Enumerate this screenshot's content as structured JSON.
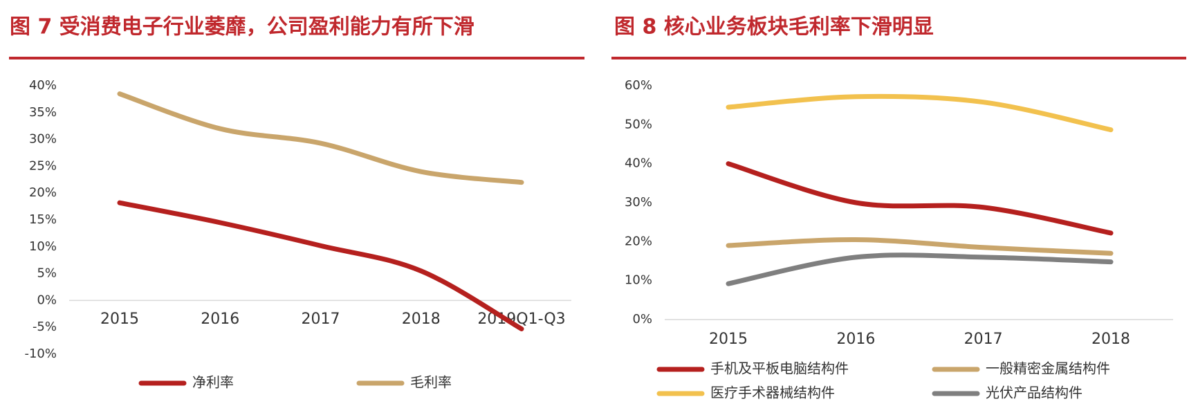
{
  "chart_data": [
    {
      "type": "line",
      "title": "图 7   受消费电子行业萎靡，公司盈利能力有所下滑",
      "categories": [
        "2015",
        "2016",
        "2017",
        "2018",
        "2019Q1-Q3"
      ],
      "series": [
        {
          "name": "净利率",
          "color": "#b5201e",
          "values": [
            18.2,
            14.5,
            10.2,
            5.5,
            -5.3
          ]
        },
        {
          "name": "毛利率",
          "color": "#c9a56b",
          "values": [
            38.5,
            32,
            29.3,
            24,
            22
          ]
        }
      ],
      "ylim": [
        -10,
        40
      ],
      "yticks": [
        {
          "value": -10,
          "label": "-10%"
        },
        {
          "value": -5,
          "label": "-5%"
        },
        {
          "value": 0,
          "label": "0%"
        },
        {
          "value": 5,
          "label": "5%"
        },
        {
          "value": 10,
          "label": "10%"
        },
        {
          "value": 15,
          "label": "15%"
        },
        {
          "value": 20,
          "label": "20%"
        },
        {
          "value": 25,
          "label": "25%"
        },
        {
          "value": 30,
          "label": "30%"
        },
        {
          "value": 35,
          "label": "35%"
        },
        {
          "value": 40,
          "label": "40%"
        }
      ],
      "grid": false,
      "legend": "bottom"
    },
    {
      "type": "line",
      "title": "图 8   核心业务板块毛利率下滑明显",
      "categories": [
        "2015",
        "2016",
        "2017",
        "2018"
      ],
      "series": [
        {
          "name": "手机及平板电脑结构件",
          "color": "#b5201e",
          "values": [
            40,
            30,
            28.8,
            22.2
          ]
        },
        {
          "name": "一般精密金属结构件",
          "color": "#c9a56b",
          "values": [
            19,
            20.5,
            18.5,
            17
          ]
        },
        {
          "name": "医疗手术器械结构件",
          "color": "#f2c14e",
          "values": [
            54.5,
            57.2,
            55.8,
            48.7
          ]
        },
        {
          "name": "光伏产品结构件",
          "color": "#7f7f7f",
          "values": [
            9.2,
            16,
            16,
            14.8
          ]
        }
      ],
      "ylim": [
        0,
        60
      ],
      "yticks": [
        {
          "value": 0,
          "label": "0%"
        },
        {
          "value": 10,
          "label": "10%"
        },
        {
          "value": 20,
          "label": "20%"
        },
        {
          "value": 30,
          "label": "30%"
        },
        {
          "value": 40,
          "label": "40%"
        },
        {
          "value": 50,
          "label": "50%"
        },
        {
          "value": 60,
          "label": "60%"
        }
      ],
      "grid": false,
      "legend": "bottom"
    }
  ]
}
